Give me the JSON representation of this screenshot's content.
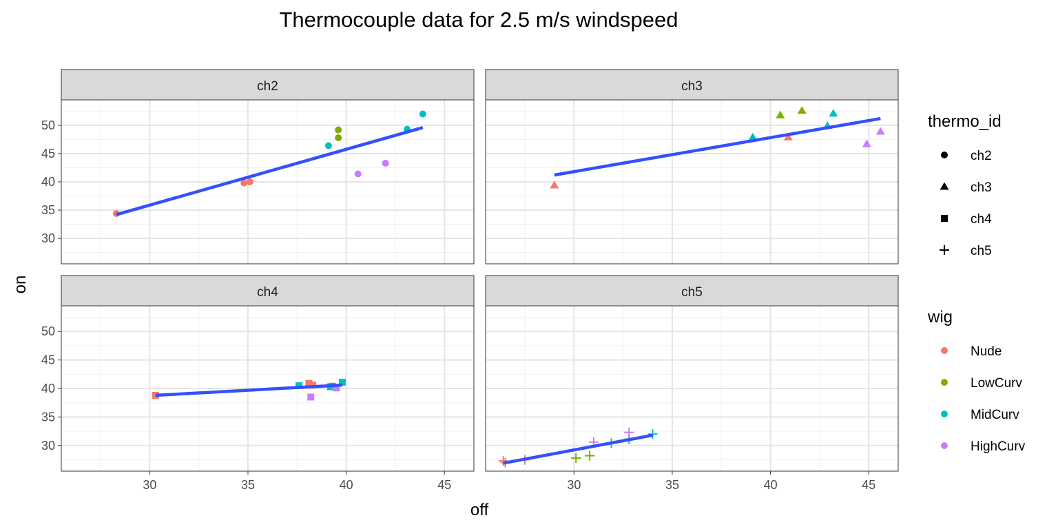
{
  "chart_data": {
    "type": "scatter",
    "title": "Thermocouple data for 2.5 m/s windspeed",
    "xlabel": "off",
    "ylabel": "on",
    "xlim": [
      25.5,
      46.5
    ],
    "ylim": [
      25.5,
      54.5
    ],
    "x_ticks": [
      30,
      35,
      40,
      45
    ],
    "y_ticks": [
      30,
      35,
      40,
      45,
      50
    ],
    "grid": true,
    "legend_position": "right",
    "legends": {
      "shape": {
        "title": "thermo_id",
        "entries": [
          {
            "label": "ch2",
            "shape": "circle"
          },
          {
            "label": "ch3",
            "shape": "triangle"
          },
          {
            "label": "ch4",
            "shape": "square"
          },
          {
            "label": "ch5",
            "shape": "plus"
          }
        ]
      },
      "color": {
        "title": "wig",
        "entries": [
          {
            "label": "Nude",
            "color": "#F8766D"
          },
          {
            "label": "LowCurv",
            "color": "#7CAE00"
          },
          {
            "label": "MidCurv",
            "color": "#00BFC4"
          },
          {
            "label": "HighCurv",
            "color": "#C77CFF"
          }
        ]
      }
    },
    "fit_line_color": "#3350FF",
    "panels": [
      {
        "name": "ch2",
        "shape": "circle",
        "fit": {
          "x": [
            28.3,
            43.9
          ],
          "y": [
            34.2,
            49.6
          ]
        },
        "points": [
          {
            "x": 28.3,
            "y": 34.4,
            "wig": "Nude"
          },
          {
            "x": 34.8,
            "y": 39.8,
            "wig": "Nude"
          },
          {
            "x": 35.1,
            "y": 40.0,
            "wig": "Nude"
          },
          {
            "x": 39.6,
            "y": 49.2,
            "wig": "LowCurv"
          },
          {
            "x": 39.6,
            "y": 47.8,
            "wig": "LowCurv"
          },
          {
            "x": 39.1,
            "y": 46.4,
            "wig": "MidCurv"
          },
          {
            "x": 43.1,
            "y": 49.3,
            "wig": "MidCurv"
          },
          {
            "x": 43.9,
            "y": 52.0,
            "wig": "MidCurv"
          },
          {
            "x": 40.6,
            "y": 41.4,
            "wig": "HighCurv"
          },
          {
            "x": 42.0,
            "y": 43.3,
            "wig": "HighCurv"
          }
        ]
      },
      {
        "name": "ch3",
        "shape": "triangle",
        "fit": {
          "x": [
            29.0,
            45.6
          ],
          "y": [
            41.2,
            51.2
          ]
        },
        "points": [
          {
            "x": 29.0,
            "y": 39.4,
            "wig": "Nude"
          },
          {
            "x": 40.9,
            "y": 47.9,
            "wig": "Nude"
          },
          {
            "x": 40.5,
            "y": 51.8,
            "wig": "LowCurv"
          },
          {
            "x": 41.6,
            "y": 52.6,
            "wig": "LowCurv"
          },
          {
            "x": 39.1,
            "y": 47.9,
            "wig": "MidCurv"
          },
          {
            "x": 42.9,
            "y": 49.9,
            "wig": "MidCurv"
          },
          {
            "x": 43.2,
            "y": 52.1,
            "wig": "MidCurv"
          },
          {
            "x": 44.9,
            "y": 46.7,
            "wig": "HighCurv"
          },
          {
            "x": 45.6,
            "y": 48.9,
            "wig": "HighCurv"
          }
        ]
      },
      {
        "name": "ch4",
        "shape": "square",
        "fit": {
          "x": [
            30.3,
            39.8
          ],
          "y": [
            38.8,
            40.6
          ]
        },
        "points": [
          {
            "x": 30.3,
            "y": 38.8,
            "wig": "Nude"
          },
          {
            "x": 38.1,
            "y": 40.9,
            "wig": "Nude"
          },
          {
            "x": 38.3,
            "y": 40.6,
            "wig": "Nude"
          },
          {
            "x": 39.3,
            "y": 40.4,
            "wig": "LowCurv"
          },
          {
            "x": 37.6,
            "y": 40.5,
            "wig": "MidCurv"
          },
          {
            "x": 39.2,
            "y": 40.3,
            "wig": "MidCurv"
          },
          {
            "x": 39.8,
            "y": 41.1,
            "wig": "MidCurv"
          },
          {
            "x": 38.2,
            "y": 38.5,
            "wig": "HighCurv"
          },
          {
            "x": 39.5,
            "y": 40.1,
            "wig": "HighCurv"
          }
        ]
      },
      {
        "name": "ch5",
        "shape": "plus",
        "fit": {
          "x": [
            26.4,
            34.0
          ],
          "y": [
            26.9,
            31.8
          ]
        },
        "points": [
          {
            "x": 26.4,
            "y": 27.3,
            "wig": "Nude"
          },
          {
            "x": 26.5,
            "y": 27.0,
            "wig": "Nude"
          },
          {
            "x": 27.5,
            "y": 27.5,
            "wig": "Nude"
          },
          {
            "x": 30.1,
            "y": 27.8,
            "wig": "LowCurv"
          },
          {
            "x": 30.8,
            "y": 28.2,
            "wig": "LowCurv"
          },
          {
            "x": 31.9,
            "y": 30.4,
            "wig": "MidCurv"
          },
          {
            "x": 32.8,
            "y": 31.1,
            "wig": "MidCurv"
          },
          {
            "x": 34.0,
            "y": 32.0,
            "wig": "MidCurv"
          },
          {
            "x": 31.0,
            "y": 30.6,
            "wig": "HighCurv"
          },
          {
            "x": 32.8,
            "y": 32.3,
            "wig": "HighCurv"
          }
        ]
      }
    ]
  }
}
